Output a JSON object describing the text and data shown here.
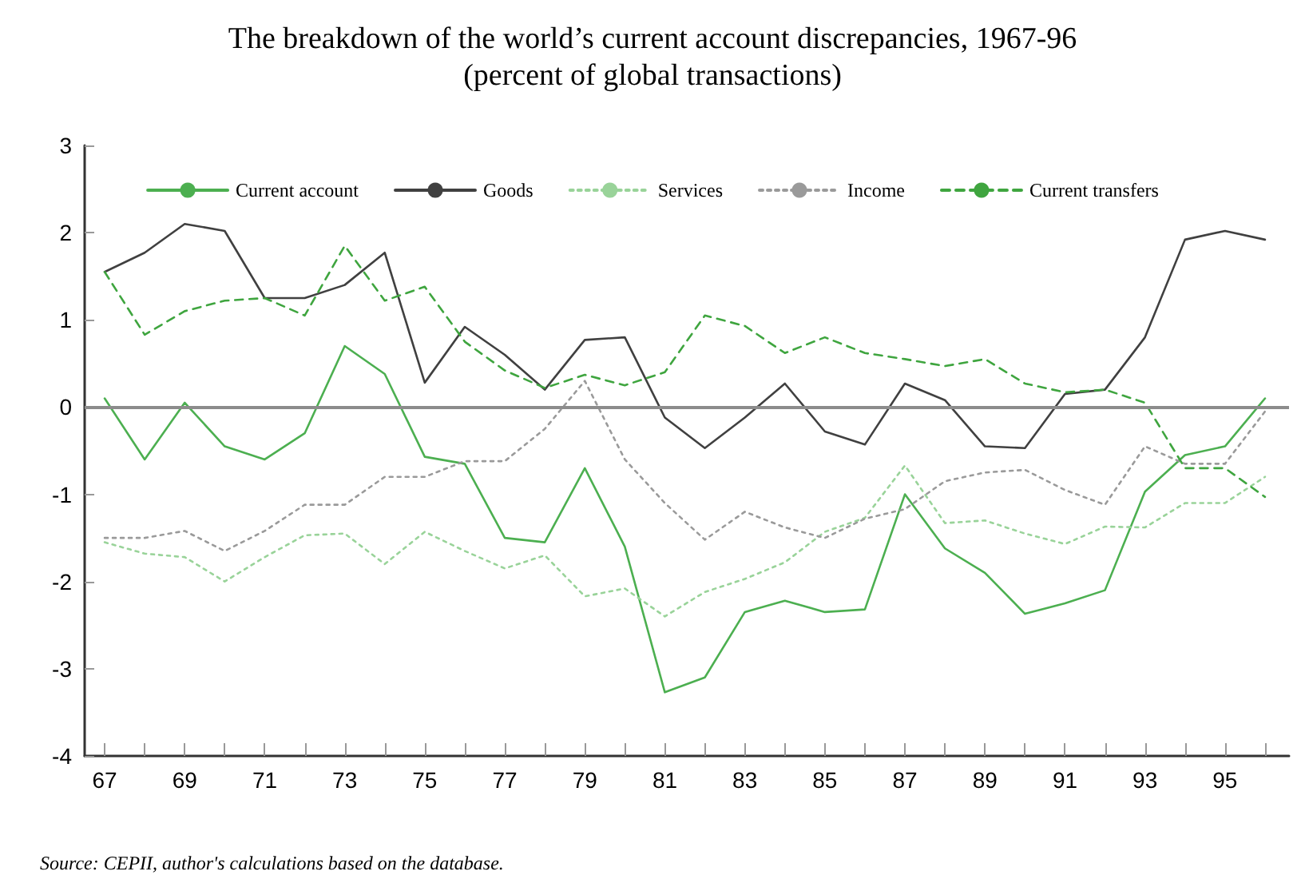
{
  "chart_data": {
    "type": "line",
    "title": "The breakdown of the world’s current account discrepancies, 1967-96",
    "subtitle": "(percent of global transactions)",
    "x": [
      67,
      68,
      69,
      70,
      71,
      72,
      73,
      74,
      75,
      76,
      77,
      78,
      79,
      80,
      81,
      82,
      83,
      84,
      85,
      86,
      87,
      88,
      89,
      90,
      91,
      92,
      93,
      94,
      95,
      96
    ],
    "series": [
      {
        "name": "Current account",
        "color": "#4caf50",
        "line_style": "solid",
        "values": [
          0.1,
          -0.6,
          0.05,
          -0.45,
          -0.6,
          -0.3,
          0.7,
          0.38,
          -0.57,
          -0.65,
          -1.5,
          -1.55,
          -0.7,
          -1.6,
          -3.27,
          -3.1,
          -2.35,
          -2.22,
          -2.35,
          -2.32,
          -1.0,
          -1.62,
          -1.9,
          -2.37,
          -2.25,
          -2.1,
          -0.97,
          -0.55,
          -0.45,
          0.1
        ]
      },
      {
        "name": "Goods",
        "color": "#404040",
        "line_style": "solid",
        "values": [
          1.55,
          1.77,
          2.1,
          2.02,
          1.25,
          1.25,
          1.4,
          1.77,
          0.28,
          0.92,
          0.6,
          0.2,
          0.77,
          0.8,
          -0.12,
          -0.47,
          -0.12,
          0.27,
          -0.28,
          -0.43,
          0.27,
          0.08,
          -0.45,
          -0.47,
          0.15,
          0.2,
          0.8,
          1.92,
          2.02,
          1.92
        ]
      },
      {
        "name": "Services",
        "color": "#99d399",
        "line_style": "dotted",
        "values": [
          -1.55,
          -1.68,
          -1.72,
          -2.0,
          -1.72,
          -1.47,
          -1.45,
          -1.8,
          -1.43,
          -1.65,
          -1.85,
          -1.7,
          -2.17,
          -2.08,
          -2.4,
          -2.12,
          -1.97,
          -1.78,
          -1.43,
          -1.27,
          -0.67,
          -1.33,
          -1.3,
          -1.45,
          -1.57,
          -1.37,
          -1.38,
          -1.1,
          -1.1,
          -0.8
        ]
      },
      {
        "name": "Income",
        "color": "#9a9a9a",
        "line_style": "dotted",
        "values": [
          -1.5,
          -1.5,
          -1.42,
          -1.65,
          -1.42,
          -1.12,
          -1.12,
          -0.8,
          -0.8,
          -0.62,
          -0.62,
          -0.25,
          0.3,
          -0.6,
          -1.1,
          -1.52,
          -1.2,
          -1.38,
          -1.5,
          -1.28,
          -1.17,
          -0.85,
          -0.75,
          -0.72,
          -0.95,
          -1.12,
          -0.45,
          -0.65,
          -0.65,
          -0.05
        ]
      },
      {
        "name": "Current transfers",
        "color": "#3fa53f",
        "line_style": "dashed",
        "values": [
          1.55,
          0.83,
          1.1,
          1.22,
          1.25,
          1.05,
          1.85,
          1.22,
          1.38,
          0.75,
          0.42,
          0.22,
          0.37,
          0.25,
          0.4,
          1.05,
          0.93,
          0.62,
          0.8,
          0.62,
          0.55,
          0.47,
          0.55,
          0.27,
          0.17,
          0.2,
          0.05,
          -0.7,
          -0.7,
          -1.03
        ]
      }
    ],
    "xlim": [
      66.5,
      96.6
    ],
    "xticks": [
      67,
      {
        "value": 68,
        "label": null
      },
      69,
      {
        "value": 70,
        "label": null
      },
      71,
      {
        "value": 72,
        "label": null
      },
      73,
      {
        "value": 74,
        "label": null
      },
      75,
      {
        "value": 76,
        "label": null
      },
      77,
      {
        "value": 78,
        "label": null
      },
      79,
      {
        "value": 80,
        "label": null
      },
      81,
      {
        "value": 82,
        "label": null
      },
      83,
      {
        "value": 84,
        "label": null
      },
      85,
      {
        "value": 86,
        "label": null
      },
      87,
      {
        "value": 88,
        "label": null
      },
      89,
      {
        "value": 90,
        "label": null
      },
      91,
      {
        "value": 92,
        "label": null
      },
      93,
      {
        "value": 94,
        "label": null
      },
      95,
      {
        "value": 96,
        "label": null
      }
    ],
    "ylim": [
      -4,
      3
    ],
    "yticks": [
      -4,
      -3,
      -2,
      -1,
      0,
      1,
      2,
      3
    ],
    "ref_lines": [
      {
        "axis": "y",
        "value": 0,
        "color": "#8c8c8c"
      }
    ],
    "annotations": [
      "Source: CEPII, author's calculations based on the database."
    ],
    "grid": false,
    "legend": "top",
    "marker": "none"
  }
}
